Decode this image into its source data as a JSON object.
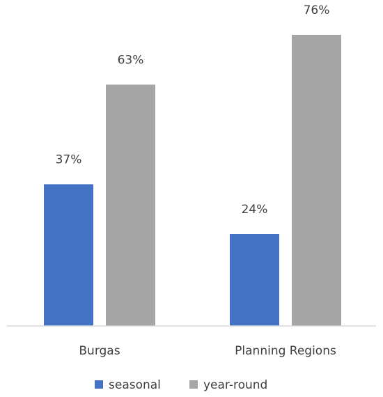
{
  "chart_data": {
    "type": "bar",
    "categories": [
      "Burgas",
      "Planning Regions"
    ],
    "series": [
      {
        "name": "seasonal",
        "values": [
          37,
          24
        ],
        "labels": [
          "37%",
          "24%"
        ],
        "color": "#4472C4"
      },
      {
        "name": "year-round",
        "values": [
          63,
          76
        ],
        "labels": [
          "63%",
          "76%"
        ],
        "color": "#A5A5A5"
      }
    ],
    "ylim": [
      0,
      80
    ],
    "unit": "%",
    "grid": false,
    "legend_position": "bottom"
  }
}
